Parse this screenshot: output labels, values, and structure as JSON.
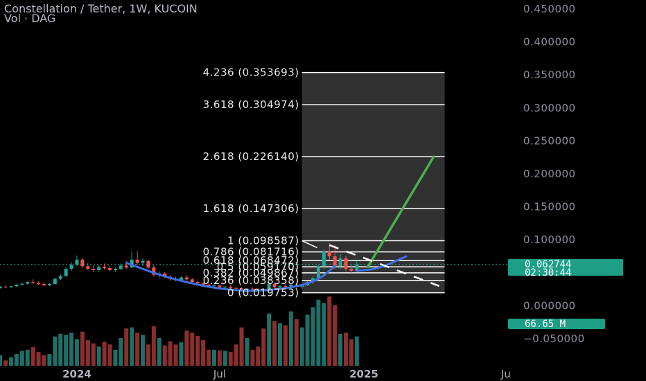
{
  "header": {
    "title": "Constellation / Tether, 1W, KUCOIN",
    "subtitle": "Vol · DAG"
  },
  "colors": {
    "background": "#000000",
    "up": "#26a69a",
    "down": "#ef5350",
    "vol_up": "#1f6f68",
    "vol_down": "#8a2f2e",
    "fib_zone": "#3a3a3a",
    "fib_line": "#ffffff",
    "curve": "#3f6fe0",
    "target_arrow": "#4caf50",
    "price_tag": "#1e9e86"
  },
  "price_tag": {
    "price": "0.062744",
    "countdown": "02:30:44"
  },
  "volume_tag": {
    "label": "66.65 M"
  },
  "chart_data": {
    "type": "candlestick",
    "title": "Constellation / Tether, 1W, KUCOIN",
    "price_axis": {
      "range": [
        -0.065,
        0.465
      ],
      "ticks": [
        {
          "value": 0.45,
          "label": "0.450000"
        },
        {
          "value": 0.4,
          "label": "0.400000"
        },
        {
          "value": 0.35,
          "label": "0.350000"
        },
        {
          "value": 0.3,
          "label": "0.300000"
        },
        {
          "value": 0.25,
          "label": "0.250000"
        },
        {
          "value": 0.2,
          "label": "0.200000"
        },
        {
          "value": 0.15,
          "label": "0.150000"
        },
        {
          "value": 0.1,
          "label": "0.100000"
        },
        {
          "value": 0.0,
          "label": "0.000000"
        },
        {
          "value": -0.05,
          "label": "−0.050000"
        }
      ]
    },
    "time_axis": {
      "start": "2023-09-04",
      "end": "2025-09-22",
      "ticks": [
        {
          "date": "2024-01-01",
          "label": "2024",
          "bold": true
        },
        {
          "date": "2024-07-01",
          "label": "Jul",
          "bold": false
        },
        {
          "date": "2025-01-01",
          "label": "2025",
          "bold": true
        },
        {
          "date": "2025-07-01",
          "label": "Ju",
          "bold": false
        }
      ]
    },
    "candles": [
      {
        "date": "2023-09-04",
        "o": 0.025,
        "h": 0.0275,
        "l": 0.024,
        "c": 0.0262,
        "v": 15
      },
      {
        "date": "2023-09-11",
        "o": 0.0262,
        "h": 0.0285,
        "l": 0.025,
        "c": 0.027,
        "v": 18
      },
      {
        "date": "2023-09-18",
        "o": 0.027,
        "h": 0.029,
        "l": 0.0255,
        "c": 0.0265,
        "v": 12
      },
      {
        "date": "2023-09-25",
        "o": 0.0265,
        "h": 0.03,
        "l": 0.026,
        "c": 0.029,
        "v": 20
      },
      {
        "date": "2023-10-02",
        "o": 0.029,
        "h": 0.031,
        "l": 0.0275,
        "c": 0.0282,
        "v": 10
      },
      {
        "date": "2023-10-09",
        "o": 0.0282,
        "h": 0.0305,
        "l": 0.027,
        "c": 0.0295,
        "v": 16
      },
      {
        "date": "2023-10-16",
        "o": 0.0295,
        "h": 0.033,
        "l": 0.0285,
        "c": 0.032,
        "v": 22
      },
      {
        "date": "2023-10-23",
        "o": 0.032,
        "h": 0.035,
        "l": 0.031,
        "c": 0.0335,
        "v": 28
      },
      {
        "date": "2023-10-30",
        "o": 0.0335,
        "h": 0.037,
        "l": 0.032,
        "c": 0.036,
        "v": 30
      },
      {
        "date": "2023-11-06",
        "o": 0.036,
        "h": 0.04,
        "l": 0.033,
        "c": 0.0345,
        "v": 35
      },
      {
        "date": "2023-11-13",
        "o": 0.0345,
        "h": 0.037,
        "l": 0.032,
        "c": 0.033,
        "v": 26
      },
      {
        "date": "2023-11-20",
        "o": 0.033,
        "h": 0.0355,
        "l": 0.03,
        "c": 0.031,
        "v": 20
      },
      {
        "date": "2023-11-27",
        "o": 0.031,
        "h": 0.034,
        "l": 0.03,
        "c": 0.033,
        "v": 22
      },
      {
        "date": "2023-12-04",
        "o": 0.033,
        "h": 0.042,
        "l": 0.0325,
        "c": 0.041,
        "v": 55
      },
      {
        "date": "2023-12-11",
        "o": 0.041,
        "h": 0.048,
        "l": 0.039,
        "c": 0.045,
        "v": 60
      },
      {
        "date": "2023-12-18",
        "o": 0.045,
        "h": 0.058,
        "l": 0.044,
        "c": 0.056,
        "v": 58
      },
      {
        "date": "2023-12-25",
        "o": 0.056,
        "h": 0.066,
        "l": 0.053,
        "c": 0.062,
        "v": 62
      },
      {
        "date": "2024-01-01",
        "o": 0.062,
        "h": 0.076,
        "l": 0.06,
        "c": 0.07,
        "v": 50
      },
      {
        "date": "2024-01-08",
        "o": 0.07,
        "h": 0.072,
        "l": 0.057,
        "c": 0.06,
        "v": 64
      },
      {
        "date": "2024-01-15",
        "o": 0.06,
        "h": 0.065,
        "l": 0.054,
        "c": 0.056,
        "v": 48
      },
      {
        "date": "2024-01-22",
        "o": 0.056,
        "h": 0.061,
        "l": 0.051,
        "c": 0.054,
        "v": 42
      },
      {
        "date": "2024-01-29",
        "o": 0.054,
        "h": 0.062,
        "l": 0.052,
        "c": 0.059,
        "v": 36
      },
      {
        "date": "2024-02-05",
        "o": 0.059,
        "h": 0.064,
        "l": 0.055,
        "c": 0.057,
        "v": 45
      },
      {
        "date": "2024-02-12",
        "o": 0.057,
        "h": 0.06,
        "l": 0.052,
        "c": 0.054,
        "v": 40
      },
      {
        "date": "2024-02-19",
        "o": 0.054,
        "h": 0.058,
        "l": 0.051,
        "c": 0.056,
        "v": 30
      },
      {
        "date": "2024-02-26",
        "o": 0.056,
        "h": 0.064,
        "l": 0.054,
        "c": 0.061,
        "v": 52
      },
      {
        "date": "2024-03-04",
        "o": 0.061,
        "h": 0.068,
        "l": 0.056,
        "c": 0.058,
        "v": 70
      },
      {
        "date": "2024-03-11",
        "o": 0.058,
        "h": 0.082,
        "l": 0.057,
        "c": 0.07,
        "v": 72
      },
      {
        "date": "2024-03-18",
        "o": 0.07,
        "h": 0.083,
        "l": 0.062,
        "c": 0.065,
        "v": 62
      },
      {
        "date": "2024-03-25",
        "o": 0.065,
        "h": 0.072,
        "l": 0.06,
        "c": 0.068,
        "v": 58
      },
      {
        "date": "2024-04-01",
        "o": 0.068,
        "h": 0.07,
        "l": 0.056,
        "c": 0.058,
        "v": 40
      },
      {
        "date": "2024-04-08",
        "o": 0.058,
        "h": 0.062,
        "l": 0.044,
        "c": 0.047,
        "v": 74
      },
      {
        "date": "2024-04-15",
        "o": 0.047,
        "h": 0.052,
        "l": 0.042,
        "c": 0.049,
        "v": 52
      },
      {
        "date": "2024-04-22",
        "o": 0.049,
        "h": 0.051,
        "l": 0.042,
        "c": 0.044,
        "v": 38
      },
      {
        "date": "2024-04-29",
        "o": 0.044,
        "h": 0.046,
        "l": 0.038,
        "c": 0.041,
        "v": 46
      },
      {
        "date": "2024-05-06",
        "o": 0.041,
        "h": 0.044,
        "l": 0.037,
        "c": 0.039,
        "v": 40
      },
      {
        "date": "2024-05-13",
        "o": 0.039,
        "h": 0.045,
        "l": 0.038,
        "c": 0.043,
        "v": 44
      },
      {
        "date": "2024-05-20",
        "o": 0.043,
        "h": 0.046,
        "l": 0.038,
        "c": 0.04,
        "v": 66
      },
      {
        "date": "2024-05-27",
        "o": 0.04,
        "h": 0.042,
        "l": 0.034,
        "c": 0.036,
        "v": 62
      },
      {
        "date": "2024-06-03",
        "o": 0.036,
        "h": 0.038,
        "l": 0.032,
        "c": 0.034,
        "v": 56
      },
      {
        "date": "2024-06-10",
        "o": 0.034,
        "h": 0.036,
        "l": 0.03,
        "c": 0.032,
        "v": 48
      },
      {
        "date": "2024-06-17",
        "o": 0.032,
        "h": 0.034,
        "l": 0.028,
        "c": 0.03,
        "v": 30
      },
      {
        "date": "2024-06-24",
        "o": 0.03,
        "h": 0.033,
        "l": 0.029,
        "c": 0.031,
        "v": 30
      },
      {
        "date": "2024-07-01",
        "o": 0.031,
        "h": 0.032,
        "l": 0.027,
        "c": 0.028,
        "v": 29
      },
      {
        "date": "2024-07-08",
        "o": 0.028,
        "h": 0.03,
        "l": 0.026,
        "c": 0.029,
        "v": 28
      },
      {
        "date": "2024-07-15",
        "o": 0.029,
        "h": 0.031,
        "l": 0.026,
        "c": 0.027,
        "v": 26
      },
      {
        "date": "2024-07-22",
        "o": 0.027,
        "h": 0.029,
        "l": 0.025,
        "c": 0.0265,
        "v": 40
      },
      {
        "date": "2024-07-29",
        "o": 0.0265,
        "h": 0.028,
        "l": 0.024,
        "c": 0.025,
        "v": 72
      },
      {
        "date": "2024-08-05",
        "o": 0.025,
        "h": 0.027,
        "l": 0.023,
        "c": 0.026,
        "v": 52
      },
      {
        "date": "2024-08-12",
        "o": 0.026,
        "h": 0.028,
        "l": 0.024,
        "c": 0.025,
        "v": 30
      },
      {
        "date": "2024-08-19",
        "o": 0.025,
        "h": 0.027,
        "l": 0.023,
        "c": 0.0245,
        "v": 36
      },
      {
        "date": "2024-08-26",
        "o": 0.0245,
        "h": 0.026,
        "l": 0.022,
        "c": 0.024,
        "v": 70
      },
      {
        "date": "2024-09-02",
        "o": 0.024,
        "h": 0.036,
        "l": 0.023,
        "c": 0.033,
        "v": 98
      },
      {
        "date": "2024-09-09",
        "o": 0.033,
        "h": 0.034,
        "l": 0.026,
        "c": 0.028,
        "v": 84
      },
      {
        "date": "2024-09-16",
        "o": 0.028,
        "h": 0.031,
        "l": 0.025,
        "c": 0.03,
        "v": 80
      },
      {
        "date": "2024-09-23",
        "o": 0.03,
        "h": 0.033,
        "l": 0.027,
        "c": 0.028,
        "v": 76
      },
      {
        "date": "2024-09-30",
        "o": 0.028,
        "h": 0.034,
        "l": 0.026,
        "c": 0.032,
        "v": 102
      },
      {
        "date": "2024-10-07",
        "o": 0.032,
        "h": 0.035,
        "l": 0.027,
        "c": 0.029,
        "v": 88
      },
      {
        "date": "2024-10-14",
        "o": 0.029,
        "h": 0.032,
        "l": 0.026,
        "c": 0.031,
        "v": 72
      },
      {
        "date": "2024-10-21",
        "o": 0.031,
        "h": 0.038,
        "l": 0.03,
        "c": 0.036,
        "v": 96
      },
      {
        "date": "2024-10-28",
        "o": 0.036,
        "h": 0.045,
        "l": 0.033,
        "c": 0.042,
        "v": 110
      },
      {
        "date": "2024-11-04",
        "o": 0.042,
        "h": 0.062,
        "l": 0.04,
        "c": 0.06,
        "v": 124
      },
      {
        "date": "2024-11-11",
        "o": 0.06,
        "h": 0.086,
        "l": 0.056,
        "c": 0.082,
        "v": 118
      },
      {
        "date": "2024-11-18",
        "o": 0.082,
        "h": 0.095,
        "l": 0.07,
        "c": 0.075,
        "v": 130
      },
      {
        "date": "2024-11-25",
        "o": 0.075,
        "h": 0.093,
        "l": 0.056,
        "c": 0.06,
        "v": 114
      },
      {
        "date": "2024-12-02",
        "o": 0.06,
        "h": 0.078,
        "l": 0.056,
        "c": 0.072,
        "v": 60
      },
      {
        "date": "2024-12-09",
        "o": 0.072,
        "h": 0.076,
        "l": 0.052,
        "c": 0.056,
        "v": 62
      },
      {
        "date": "2024-12-16",
        "o": 0.056,
        "h": 0.062,
        "l": 0.05,
        "c": 0.053,
        "v": 50
      },
      {
        "date": "2024-12-23",
        "o": 0.053,
        "h": 0.068,
        "l": 0.052,
        "c": 0.0627,
        "v": 55
      }
    ],
    "fibonacci": {
      "levels": [
        {
          "ratio": "4.236",
          "price": 0.353693,
          "label": "4.236 (0.353693)"
        },
        {
          "ratio": "3.618",
          "price": 0.304974,
          "label": "3.618 (0.304974)"
        },
        {
          "ratio": "2.618",
          "price": 0.22614,
          "label": "2.618 (0.226140)"
        },
        {
          "ratio": "1.618",
          "price": 0.147306,
          "label": "1.618 (0.147306)"
        },
        {
          "ratio": "1",
          "price": 0.098587,
          "label": "1 (0.098587)"
        },
        {
          "ratio": "0.786",
          "price": 0.081716,
          "label": "0.786 (0.081716)"
        },
        {
          "ratio": "0.618",
          "price": 0.068472,
          "label": "0.618 (0.068472)"
        },
        {
          "ratio": "0.5",
          "price": 0.05917,
          "label": "0.5 (0.059170)"
        },
        {
          "ratio": "0.382",
          "price": 0.049867,
          "label": "0.382 (0.049867)"
        },
        {
          "ratio": "0.236",
          "price": 0.038358,
          "label": "0.236 (0.038358)"
        },
        {
          "ratio": "0",
          "price": 0.019753,
          "label": "0 (0.019753)"
        }
      ],
      "zone_start": "2024-10-14",
      "zone_end": "2025-04-14",
      "trend_from": {
        "date": "2024-10-14",
        "price": 0.098587
      }
    },
    "annotations": {
      "rounding_curve": [
        {
          "date": "2024-03-04",
          "price": 0.065
        },
        {
          "date": "2024-05-01",
          "price": 0.04
        },
        {
          "date": "2024-07-15",
          "price": 0.022
        },
        {
          "date": "2024-09-15",
          "price": 0.024
        },
        {
          "date": "2024-11-01",
          "price": 0.036
        },
        {
          "date": "2024-11-25",
          "price": 0.06
        }
      ],
      "small_curve": [
        {
          "date": "2024-12-23",
          "price": 0.053
        },
        {
          "date": "2025-01-20",
          "price": 0.056
        },
        {
          "date": "2025-02-24",
          "price": 0.075
        }
      ],
      "target_arrow": [
        {
          "date": "2025-01-06",
          "price": 0.059
        },
        {
          "date": "2025-03-31",
          "price": 0.226
        }
      ],
      "dashed_trend": [
        {
          "date": "2024-11-18",
          "price": 0.092
        },
        {
          "date": "2025-04-07",
          "price": 0.03
        }
      ]
    },
    "last_price": 0.062744,
    "volume_label": "66.65 M"
  }
}
